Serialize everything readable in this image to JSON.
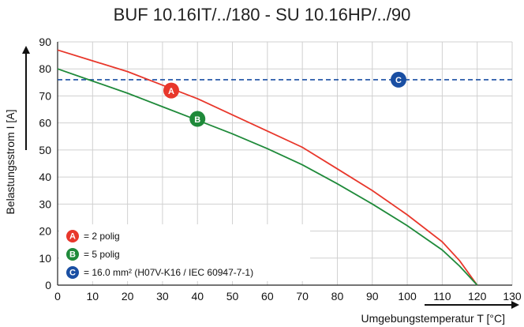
{
  "chart_data": {
    "type": "line",
    "title": "BUF 10.16IT/../180 - SU 10.16HP/../90",
    "xlabel": "Umgebungstemperatur T [°C]",
    "ylabel": "Belastungsstrom I [A]",
    "xlim": [
      0,
      130
    ],
    "ylim": [
      0,
      90
    ],
    "xticks": [
      "0",
      "10",
      "20",
      "30",
      "40",
      "50",
      "60",
      "70",
      "80",
      "90",
      "100",
      "110",
      "120",
      "130"
    ],
    "yticks": [
      "0",
      "10",
      "20",
      "30",
      "40",
      "50",
      "60",
      "70",
      "80",
      "90"
    ],
    "grid": true,
    "legend_position": "bottom-left",
    "series": [
      {
        "marker": "A",
        "color": "#e8372b",
        "x": [
          0,
          10,
          20,
          30,
          40,
          50,
          60,
          70,
          80,
          90,
          100,
          110,
          115,
          120
        ],
        "y": [
          87,
          83,
          79,
          74,
          69,
          63,
          57,
          51,
          43,
          35,
          26,
          16,
          9,
          0
        ],
        "marker_point": [
          32.5,
          72
        ]
      },
      {
        "marker": "B",
        "color": "#1f8a3a",
        "x": [
          0,
          10,
          20,
          30,
          40,
          50,
          60,
          70,
          80,
          90,
          100,
          110,
          115,
          120
        ],
        "y": [
          80,
          75.5,
          71,
          66,
          61,
          56,
          50.5,
          44.5,
          37.5,
          30,
          22,
          13,
          7,
          0
        ],
        "marker_point": [
          40,
          61.5
        ]
      }
    ],
    "reference_lines": [
      {
        "marker": "C",
        "y": 76,
        "color": "#1a4fa3",
        "style": "dashed",
        "marker_point": [
          97.5,
          76
        ]
      }
    ],
    "legend": [
      {
        "marker": "A",
        "color": "#e8372b",
        "label": "= 2 polig"
      },
      {
        "marker": "B",
        "color": "#1f8a3a",
        "label": "= 5 polig"
      },
      {
        "marker": "C",
        "color": "#1a4fa3",
        "label": "= 16.0 mm² (H07V-K16 / IEC 60947-7-1)"
      }
    ]
  }
}
